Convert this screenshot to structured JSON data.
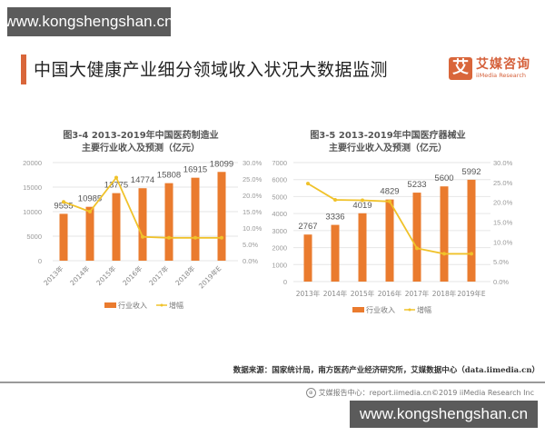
{
  "watermark": {
    "text": "www.kongshengshan.cn"
  },
  "header": {
    "title": "中国大健康产业细分领域收入状况大数据监测",
    "logo": {
      "icon_char": "艾",
      "name_cn": "艾媒咨询",
      "name_en": "iiMedia Research",
      "color": "#d9663a"
    }
  },
  "footer": {
    "source": "数据来源：国家统计局，南方医药产业经济研究所，艾媒数据中心（data.iimedia.cn）",
    "report": "艾媒报告中心：report.iimedia.cn©2019 iiMedia Research Inc"
  },
  "colors": {
    "bar": "#ea7b2e",
    "line": "#f0c22a",
    "grid": "#e6e6e6",
    "axis_text": "#999999",
    "label_text": "#555555"
  },
  "chart_data": [
    {
      "type": "bar",
      "title": "图3-4 2013-2019年中国医药制造业",
      "subtitle": "主要行业收入及预测（亿元）",
      "categories": [
        "2013年",
        "2014年",
        "2015年",
        "2016年",
        "2017年",
        "2018年",
        "2019年E"
      ],
      "series": [
        {
          "name": "行业收入",
          "type": "bar",
          "axis": "left",
          "values": [
            9555,
            10985,
            13775,
            14774,
            15808,
            16915,
            18099
          ]
        },
        {
          "name": "增幅",
          "type": "line",
          "axis": "right",
          "values": [
            18.0,
            15.0,
            25.4,
            7.3,
            7.0,
            7.0,
            7.0
          ]
        }
      ],
      "ylim": [
        0,
        20000
      ],
      "yticks": [
        0,
        5000,
        10000,
        15000,
        20000
      ],
      "y2lim": [
        0,
        30
      ],
      "y2ticks": [
        "0.0%",
        "5.0%",
        "10.0%",
        "15.0%",
        "20.0%",
        "25.0%",
        "30.0%"
      ],
      "xlabel": "",
      "ylabel": "",
      "xlabel_rotation": -45,
      "grid": true,
      "legend_position": "bottom"
    },
    {
      "type": "bar",
      "title": "图3-5 2013-2019年中国医疗器械业",
      "subtitle": "主要行业收入及预测（亿元）",
      "categories": [
        "2013年",
        "2014年",
        "2015年",
        "2016年",
        "2017年",
        "2018年",
        "2019年E"
      ],
      "series": [
        {
          "name": "行业收入",
          "type": "bar",
          "axis": "left",
          "values": [
            2767,
            3336,
            4019,
            4829,
            5233,
            5600,
            5992
          ]
        },
        {
          "name": "增幅",
          "type": "line",
          "axis": "right",
          "values": [
            24.7,
            20.6,
            20.5,
            20.2,
            8.4,
            7.0,
            7.0
          ]
        }
      ],
      "ylim": [
        0,
        7000
      ],
      "yticks": [
        0,
        1000,
        2000,
        3000,
        4000,
        5000,
        6000,
        7000
      ],
      "y2lim": [
        0,
        30
      ],
      "y2ticks": [
        "0.0%",
        "5.0%",
        "10.0%",
        "15.0%",
        "20.0%",
        "25.0%",
        "30.0%"
      ],
      "xlabel": "",
      "ylabel": "",
      "xlabel_rotation": 0,
      "grid": true,
      "legend_position": "bottom"
    }
  ]
}
